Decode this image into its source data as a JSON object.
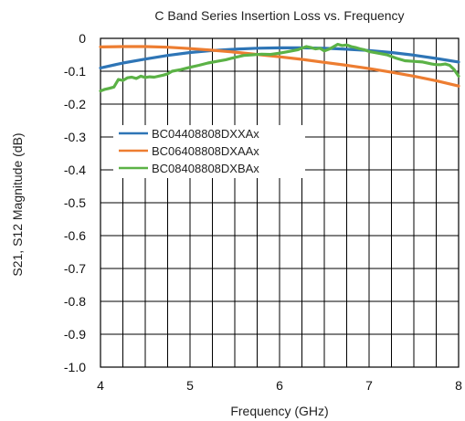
{
  "chart_data": {
    "type": "line",
    "title": "C Band Series Insertion Loss vs. Frequency",
    "xlabel": "Frequency (GHz)",
    "ylabel": "S21, S12 Magnitude (dB)",
    "xlim": [
      4,
      8
    ],
    "ylim": [
      -1.0,
      0
    ],
    "x_ticks": [
      "4",
      "5",
      "6",
      "7",
      "8"
    ],
    "y_ticks": [
      "0",
      "-0.1",
      "-0.2",
      "-0.3",
      "-0.4",
      "-0.5",
      "-0.6",
      "-0.7",
      "-0.8",
      "-0.9",
      "-1.0"
    ],
    "x_grid_step": 0.25,
    "y_grid_step": 0.1,
    "grid": true,
    "legend_position": "upper-left",
    "series": [
      {
        "name": "BC04408808DXXAx",
        "color": "#2e75b6",
        "points": [
          [
            4.0,
            -0.09
          ],
          [
            4.25,
            -0.075
          ],
          [
            4.5,
            -0.063
          ],
          [
            4.75,
            -0.052
          ],
          [
            5.0,
            -0.043
          ],
          [
            5.25,
            -0.037
          ],
          [
            5.5,
            -0.033
          ],
          [
            5.75,
            -0.03
          ],
          [
            6.0,
            -0.029
          ],
          [
            6.25,
            -0.029
          ],
          [
            6.5,
            -0.03
          ],
          [
            6.75,
            -0.033
          ],
          [
            7.0,
            -0.037
          ],
          [
            7.25,
            -0.043
          ],
          [
            7.5,
            -0.051
          ],
          [
            7.75,
            -0.061
          ],
          [
            8.0,
            -0.072
          ]
        ]
      },
      {
        "name": "BC06408808DXAAx",
        "color": "#ed7d31",
        "points": [
          [
            4.0,
            -0.026
          ],
          [
            4.25,
            -0.025
          ],
          [
            4.5,
            -0.025
          ],
          [
            4.75,
            -0.027
          ],
          [
            5.0,
            -0.031
          ],
          [
            5.25,
            -0.036
          ],
          [
            5.5,
            -0.042
          ],
          [
            5.75,
            -0.049
          ],
          [
            6.0,
            -0.056
          ],
          [
            6.25,
            -0.064
          ],
          [
            6.5,
            -0.073
          ],
          [
            6.75,
            -0.082
          ],
          [
            7.0,
            -0.092
          ],
          [
            7.25,
            -0.103
          ],
          [
            7.5,
            -0.115
          ],
          [
            7.75,
            -0.129
          ],
          [
            8.0,
            -0.145
          ]
        ]
      },
      {
        "name": "BC08408808DXBAx",
        "color": "#5bb246",
        "points": [
          [
            4.0,
            -0.16
          ],
          [
            4.05,
            -0.155
          ],
          [
            4.1,
            -0.152
          ],
          [
            4.15,
            -0.148
          ],
          [
            4.2,
            -0.125
          ],
          [
            4.25,
            -0.128
          ],
          [
            4.3,
            -0.12
          ],
          [
            4.35,
            -0.118
          ],
          [
            4.4,
            -0.122
          ],
          [
            4.45,
            -0.115
          ],
          [
            4.5,
            -0.119
          ],
          [
            4.55,
            -0.117
          ],
          [
            4.6,
            -0.118
          ],
          [
            4.7,
            -0.112
          ],
          [
            4.75,
            -0.108
          ],
          [
            4.8,
            -0.1
          ],
          [
            4.9,
            -0.095
          ],
          [
            5.0,
            -0.088
          ],
          [
            5.1,
            -0.082
          ],
          [
            5.2,
            -0.075
          ],
          [
            5.3,
            -0.07
          ],
          [
            5.4,
            -0.065
          ],
          [
            5.5,
            -0.058
          ],
          [
            5.6,
            -0.052
          ],
          [
            5.7,
            -0.05
          ],
          [
            5.8,
            -0.048
          ],
          [
            5.9,
            -0.049
          ],
          [
            6.0,
            -0.045
          ],
          [
            6.1,
            -0.04
          ],
          [
            6.2,
            -0.035
          ],
          [
            6.25,
            -0.03
          ],
          [
            6.3,
            -0.025
          ],
          [
            6.35,
            -0.028
          ],
          [
            6.4,
            -0.032
          ],
          [
            6.45,
            -0.03
          ],
          [
            6.5,
            -0.038
          ],
          [
            6.55,
            -0.033
          ],
          [
            6.6,
            -0.026
          ],
          [
            6.65,
            -0.018
          ],
          [
            6.7,
            -0.022
          ],
          [
            6.75,
            -0.02
          ],
          [
            6.8,
            -0.025
          ],
          [
            6.85,
            -0.028
          ],
          [
            6.9,
            -0.032
          ],
          [
            6.95,
            -0.035
          ],
          [
            7.0,
            -0.04
          ],
          [
            7.1,
            -0.045
          ],
          [
            7.2,
            -0.05
          ],
          [
            7.3,
            -0.06
          ],
          [
            7.4,
            -0.068
          ],
          [
            7.5,
            -0.07
          ],
          [
            7.6,
            -0.072
          ],
          [
            7.7,
            -0.078
          ],
          [
            7.75,
            -0.08
          ],
          [
            7.8,
            -0.08
          ],
          [
            7.85,
            -0.078
          ],
          [
            7.9,
            -0.082
          ],
          [
            7.95,
            -0.095
          ],
          [
            8.0,
            -0.115
          ]
        ]
      }
    ]
  }
}
